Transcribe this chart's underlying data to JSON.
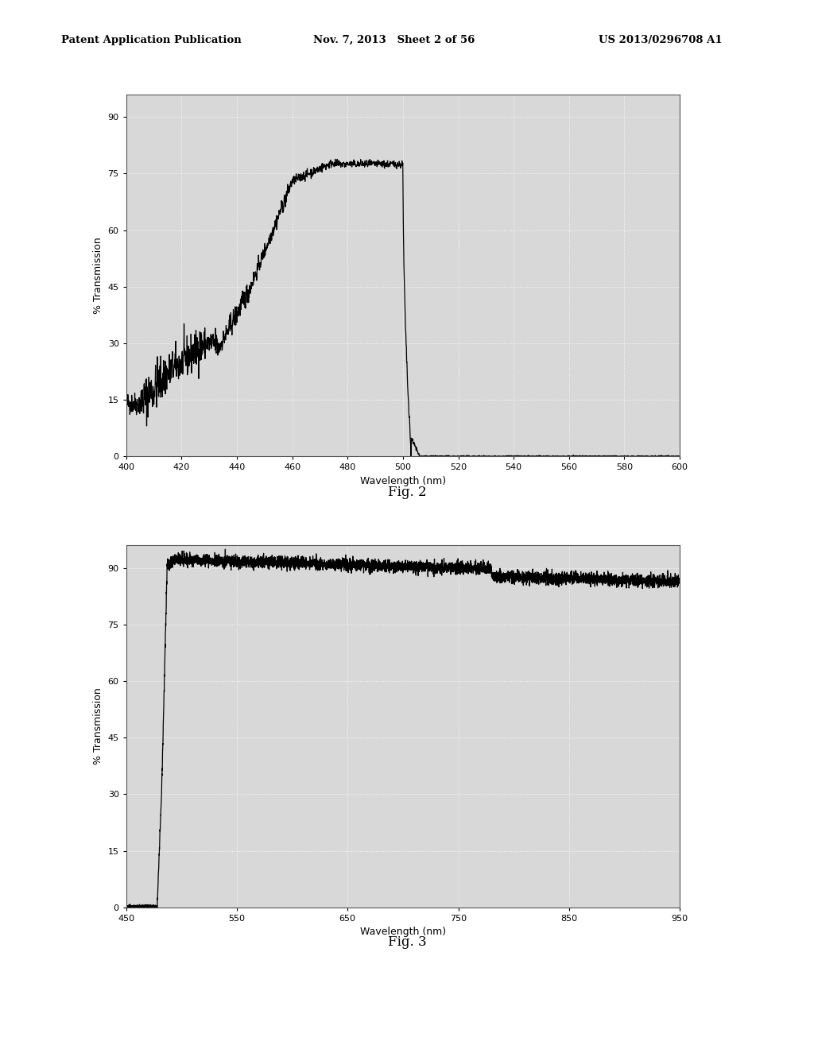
{
  "header_left": "Patent Application Publication",
  "header_mid": "Nov. 7, 2013   Sheet 2 of 56",
  "header_right": "US 2013/0296708 A1",
  "fig2_label": "Fig. 2",
  "fig3_label": "Fig. 3",
  "fig2": {
    "xlabel": "Wavelength (nm)",
    "ylabel": "% Transmission",
    "xmin": 400,
    "xmax": 600,
    "ymin": 0,
    "ymax": 96,
    "xticks": [
      400,
      420,
      440,
      460,
      480,
      500,
      520,
      540,
      560,
      580,
      600
    ],
    "yticks": [
      0,
      15,
      30,
      45,
      60,
      75,
      90
    ]
  },
  "fig3": {
    "xlabel": "Wavelength (nm)",
    "ylabel": "% Transmission",
    "xmin": 450,
    "xmax": 950,
    "ymin": 0,
    "ymax": 96,
    "xticks": [
      450,
      550,
      650,
      750,
      850,
      950
    ],
    "yticks": [
      0,
      15,
      30,
      45,
      60,
      75,
      90
    ]
  },
  "line_color": "#000000",
  "plot_bg": "#d8d8d8",
  "grid_color": "#ffffff",
  "outer_bg": "#ffffff"
}
